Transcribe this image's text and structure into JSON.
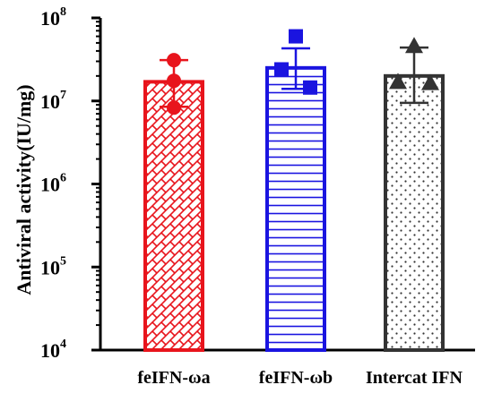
{
  "chart_data": {
    "type": "bar",
    "title": "",
    "ylabel": "Antiviral activity(IU/mg)",
    "xlabel": "",
    "yscale": "log",
    "ylim": [
      10000,
      100000000
    ],
    "yticks": [
      {
        "base": "10",
        "exp": "4",
        "value": 10000
      },
      {
        "base": "10",
        "exp": "5",
        "value": 100000
      },
      {
        "base": "10",
        "exp": "6",
        "value": 1000000
      },
      {
        "base": "10",
        "exp": "7",
        "value": 10000000
      },
      {
        "base": "10",
        "exp": "8",
        "value": 100000000
      }
    ],
    "categories": [
      "feIFN-ωa",
      "feIFN-ωb",
      "Intercat IFN"
    ],
    "values": [
      17000000,
      25000000,
      20000000
    ],
    "error_upper": [
      31000000,
      43000000,
      44000000
    ],
    "error_lower": [
      8500000,
      14000000,
      9500000
    ],
    "points": [
      [
        31000000,
        17500000,
        8300000
      ],
      [
        60000000,
        24000000,
        14500000
      ],
      [
        46000000,
        17000000,
        16500000
      ]
    ],
    "colors": [
      "#e8141c",
      "#1a14e0",
      "#333333"
    ],
    "patterns": [
      "crosshatch",
      "horizontal-lines",
      "dots"
    ],
    "markers": [
      "circle",
      "square",
      "triangle"
    ],
    "grid": false,
    "legend": "none"
  }
}
